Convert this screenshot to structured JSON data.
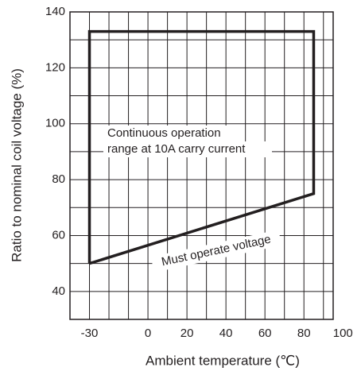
{
  "chart_data": {
    "type": "line",
    "xlabel": "Ambient temperature (℃)",
    "ylabel": "Ratio to nominal coil voltage (%)",
    "x": [
      -30,
      -30,
      85,
      85,
      -30
    ],
    "values": [
      50,
      133,
      133,
      75,
      50
    ],
    "color": "#231f20",
    "xlim": [
      -40,
      95
    ],
    "ylim": [
      30,
      140
    ],
    "xticks": [
      -30,
      0,
      20,
      40,
      60,
      80,
      100
    ],
    "yticks": [
      40,
      60,
      80,
      100,
      120,
      140
    ],
    "xgrid": [
      -30,
      -20,
      -10,
      0,
      10,
      20,
      30,
      40,
      50,
      60,
      70,
      80,
      90
    ],
    "ygrid": [
      40,
      50,
      60,
      70,
      80,
      90,
      100,
      110,
      120,
      130
    ],
    "grid": true,
    "annotations": [
      "Continuous operation",
      "range at 10A carry current",
      "Must operate voltage"
    ]
  }
}
